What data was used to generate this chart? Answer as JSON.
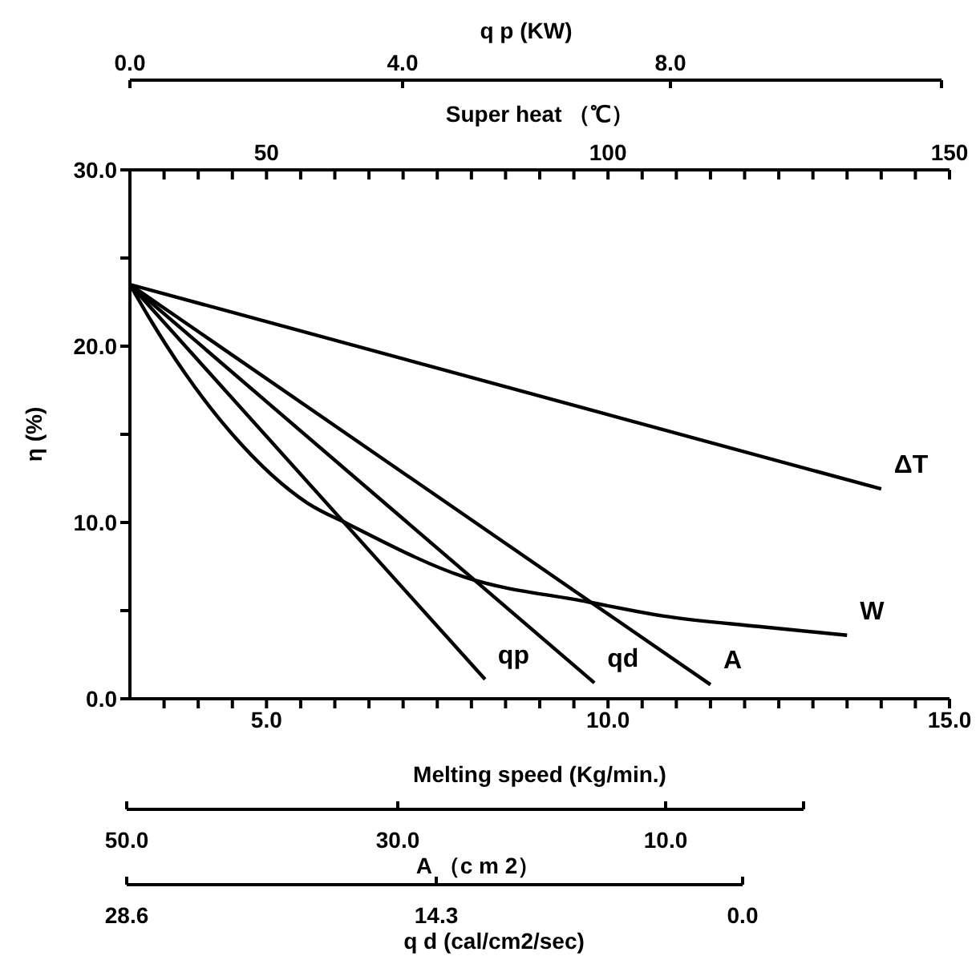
{
  "chart_data": {
    "type": "line",
    "xlabel": "Melting speed (Kg/min.)",
    "ylabel": "η (%)",
    "x2label": "Super heat （℃）",
    "annotations": [
      "q p (KW)",
      "0.0",
      "4.0",
      "8.0",
      "50.0",
      "30.0",
      "10.0",
      "A （c m 2）",
      "28.6",
      "14.3",
      "0.0",
      "q d (cal/cm2/sec)"
    ],
    "xlim": [
      3,
      15
    ],
    "xticks": [
      {
        "value": 3.5,
        "label": null
      },
      {
        "value": 4,
        "label": null
      },
      {
        "value": 4.5,
        "label": null
      },
      {
        "value": 5,
        "label": "5.0"
      },
      {
        "value": 5.5,
        "label": null
      },
      {
        "value": 6,
        "label": null
      },
      {
        "value": 6.5,
        "label": null
      },
      {
        "value": 7,
        "label": null
      },
      {
        "value": 7.5,
        "label": null
      },
      {
        "value": 8,
        "label": null
      },
      {
        "value": 8.5,
        "label": null
      },
      {
        "value": 9,
        "label": null
      },
      {
        "value": 9.5,
        "label": null
      },
      {
        "value": 10,
        "label": "10.0"
      },
      {
        "value": 10.5,
        "label": null
      },
      {
        "value": 11,
        "label": null
      },
      {
        "value": 11.5,
        "label": null
      },
      {
        "value": 12,
        "label": null
      },
      {
        "value": 12.5,
        "label": null
      },
      {
        "value": 13,
        "label": null
      },
      {
        "value": 13.5,
        "label": null
      },
      {
        "value": 14,
        "label": null
      },
      {
        "value": 14.5,
        "label": null
      },
      {
        "value": 15,
        "label": "15.0"
      }
    ],
    "ylim": [
      0,
      30
    ],
    "yticks": [
      {
        "value": 0,
        "label": "0.0"
      },
      {
        "value": 5,
        "label": null
      },
      {
        "value": 10,
        "label": "10.0"
      },
      {
        "value": 15,
        "label": null
      },
      {
        "value": 20,
        "label": "20.0"
      },
      {
        "value": 25,
        "label": null
      },
      {
        "value": 30,
        "label": "30.0"
      }
    ],
    "x2lim": [
      30,
      150
    ],
    "x2ticks": [
      {
        "value": 35,
        "label": null
      },
      {
        "value": 40,
        "label": null
      },
      {
        "value": 45,
        "label": null
      },
      50,
      {
        "value": 55,
        "label": null
      },
      {
        "value": 60,
        "label": null
      },
      {
        "value": 65,
        "label": null
      },
      {
        "value": 70,
        "label": null
      },
      {
        "value": 75,
        "label": null
      },
      {
        "value": 80,
        "label": null
      },
      {
        "value": 85,
        "label": null
      },
      {
        "value": 90,
        "label": null
      },
      {
        "value": 95,
        "label": null
      },
      100,
      {
        "value": 105,
        "label": null
      },
      {
        "value": 110,
        "label": null
      },
      {
        "value": 115,
        "label": null
      },
      {
        "value": 120,
        "label": null
      },
      {
        "value": 125,
        "label": null
      },
      {
        "value": 130,
        "label": null
      },
      {
        "value": 135,
        "label": null
      },
      {
        "value": 140,
        "label": null
      },
      {
        "value": 145,
        "label": null
      },
      150
    ],
    "marker": "none",
    "line_style": "solid",
    "series": [
      {
        "name": "ΔT",
        "color": "#000000",
        "x": [
          3,
          14.0
        ],
        "values": [
          23.5,
          11.9
        ]
      },
      {
        "name": "W",
        "color": "#000000",
        "x": [
          3,
          3.3,
          3.8,
          4.5,
          5.6,
          6.2,
          7.9,
          9.7,
          10.8,
          12.2,
          13.5
        ],
        "values": [
          23.5,
          21.5,
          18.5,
          15.0,
          11.1,
          9.9,
          6.9,
          5.5,
          4.7,
          4.1,
          3.6
        ]
      },
      {
        "name": "qp",
        "color": "#000000",
        "x": [
          3,
          8.2
        ],
        "values": [
          23.5,
          1.1
        ]
      },
      {
        "name": "qd",
        "color": "#000000",
        "x": [
          3,
          9.8
        ],
        "values": [
          23.5,
          0.9
        ]
      },
      {
        "name": "A",
        "color": "#000000",
        "x": [
          3,
          11.5
        ],
        "values": [
          23.5,
          0.8
        ]
      }
    ]
  }
}
